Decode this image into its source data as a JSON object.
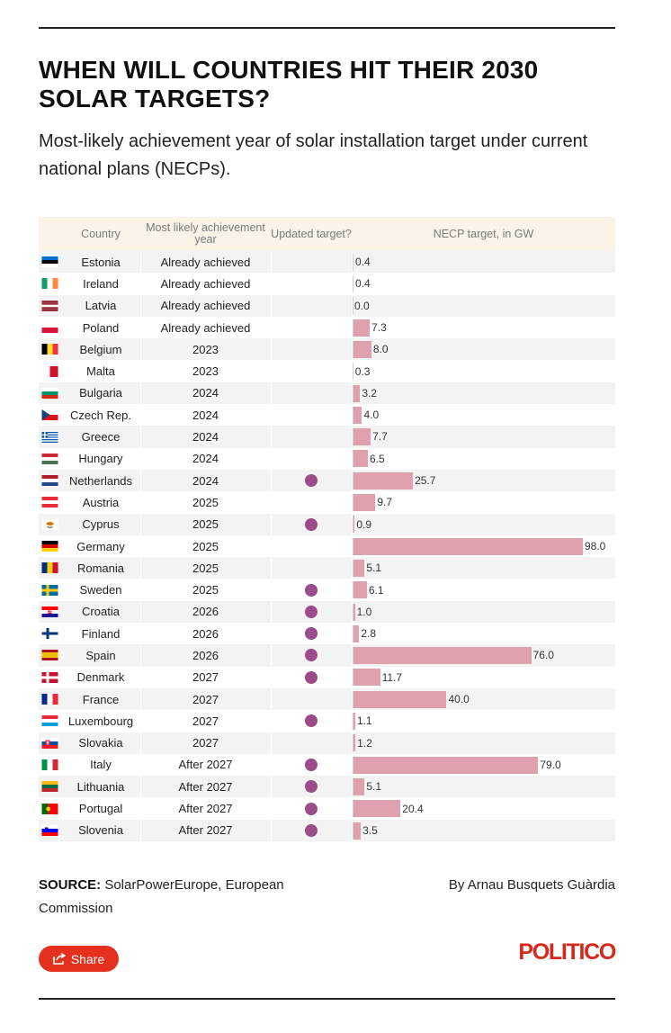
{
  "title": "WHEN WILL COUNTRIES HIT THEIR 2030 SOLAR TARGETS?",
  "subtitle": "Most-likely achievement year of solar installation target under current national plans (NECPs).",
  "columns": {
    "country": "Country",
    "year": "Most likely achievement year",
    "updated": "Updated target?",
    "necp": "NECP target, in GW"
  },
  "colors": {
    "bar": "#e0a1ae",
    "dot": "#9c4b8b",
    "header_bg": "#fbf3e7",
    "stripe": "#f3f3f3",
    "brand": "#e5301e"
  },
  "chart_data": {
    "type": "table",
    "title": "WHEN WILL COUNTRIES HIT THEIR 2030 SOLAR TARGETS?",
    "value_label": "NECP target, in GW",
    "xlim": [
      0,
      98
    ],
    "rows": [
      {
        "country": "Estonia",
        "flag": "estonia-flag-icon",
        "year": "Already achieved",
        "updated": false,
        "value": 0.4,
        "label": "0.4"
      },
      {
        "country": "Ireland",
        "flag": "ireland-flag-icon",
        "year": "Already achieved",
        "updated": false,
        "value": 0.4,
        "label": "0.4"
      },
      {
        "country": "Latvia",
        "flag": "latvia-flag-icon",
        "year": "Already achieved",
        "updated": false,
        "value": 0.0,
        "label": "0.0"
      },
      {
        "country": "Poland",
        "flag": "poland-flag-icon",
        "year": "Already achieved",
        "updated": false,
        "value": 7.3,
        "label": "7.3"
      },
      {
        "country": "Belgium",
        "flag": "belgium-flag-icon",
        "year": "2023",
        "updated": false,
        "value": 8.0,
        "label": "8.0"
      },
      {
        "country": "Malta",
        "flag": "malta-flag-icon",
        "year": "2023",
        "updated": false,
        "value": 0.3,
        "label": "0.3"
      },
      {
        "country": "Bulgaria",
        "flag": "bulgaria-flag-icon",
        "year": "2024",
        "updated": false,
        "value": 3.2,
        "label": "3.2"
      },
      {
        "country": "Czech Rep.",
        "flag": "czech-flag-icon",
        "year": "2024",
        "updated": false,
        "value": 4.0,
        "label": "4.0"
      },
      {
        "country": "Greece",
        "flag": "greece-flag-icon",
        "year": "2024",
        "updated": false,
        "value": 7.7,
        "label": "7.7"
      },
      {
        "country": "Hungary",
        "flag": "hungary-flag-icon",
        "year": "2024",
        "updated": false,
        "value": 6.5,
        "label": "6.5"
      },
      {
        "country": "Netherlands",
        "flag": "netherlands-flag-icon",
        "year": "2024",
        "updated": true,
        "value": 25.7,
        "label": "25.7"
      },
      {
        "country": "Austria",
        "flag": "austria-flag-icon",
        "year": "2025",
        "updated": false,
        "value": 9.7,
        "label": "9.7"
      },
      {
        "country": "Cyprus",
        "flag": "cyprus-flag-icon",
        "year": "2025",
        "updated": true,
        "value": 0.9,
        "label": "0.9"
      },
      {
        "country": "Germany",
        "flag": "germany-flag-icon",
        "year": "2025",
        "updated": false,
        "value": 98.0,
        "label": "98.0"
      },
      {
        "country": "Romania",
        "flag": "romania-flag-icon",
        "year": "2025",
        "updated": false,
        "value": 5.1,
        "label": "5.1"
      },
      {
        "country": "Sweden",
        "flag": "sweden-flag-icon",
        "year": "2025",
        "updated": true,
        "value": 6.1,
        "label": "6.1"
      },
      {
        "country": "Croatia",
        "flag": "croatia-flag-icon",
        "year": "2026",
        "updated": true,
        "value": 1.0,
        "label": "1.0"
      },
      {
        "country": "Finland",
        "flag": "finland-flag-icon",
        "year": "2026",
        "updated": true,
        "value": 2.8,
        "label": "2.8"
      },
      {
        "country": "Spain",
        "flag": "spain-flag-icon",
        "year": "2026",
        "updated": true,
        "value": 76.0,
        "label": "76.0"
      },
      {
        "country": "Denmark",
        "flag": "denmark-flag-icon",
        "year": "2027",
        "updated": true,
        "value": 11.7,
        "label": "11.7"
      },
      {
        "country": "France",
        "flag": "france-flag-icon",
        "year": "2027",
        "updated": false,
        "value": 40.0,
        "label": "40.0"
      },
      {
        "country": "Luxembourg",
        "flag": "luxembourg-flag-icon",
        "year": "2027",
        "updated": true,
        "value": 1.1,
        "label": "1.1"
      },
      {
        "country": "Slovakia",
        "flag": "slovakia-flag-icon",
        "year": "2027",
        "updated": false,
        "value": 1.2,
        "label": "1.2"
      },
      {
        "country": "Italy",
        "flag": "italy-flag-icon",
        "year": "After 2027",
        "updated": true,
        "value": 79.0,
        "label": "79.0"
      },
      {
        "country": "Lithuania",
        "flag": "lithuania-flag-icon",
        "year": "After 2027",
        "updated": true,
        "value": 5.1,
        "label": "5.1"
      },
      {
        "country": "Portugal",
        "flag": "portugal-flag-icon",
        "year": "After 2027",
        "updated": true,
        "value": 20.4,
        "label": "20.4"
      },
      {
        "country": "Slovenia",
        "flag": "slovenia-flag-icon",
        "year": "After 2027",
        "updated": true,
        "value": 3.5,
        "label": "3.5"
      }
    ]
  },
  "footer": {
    "source_label": "SOURCE:",
    "source_text": " SolarPowerEurope, European Commission",
    "byline": "By Arnau Busquets Guàrdia",
    "share_label": "Share",
    "logo": "POLITICO"
  }
}
